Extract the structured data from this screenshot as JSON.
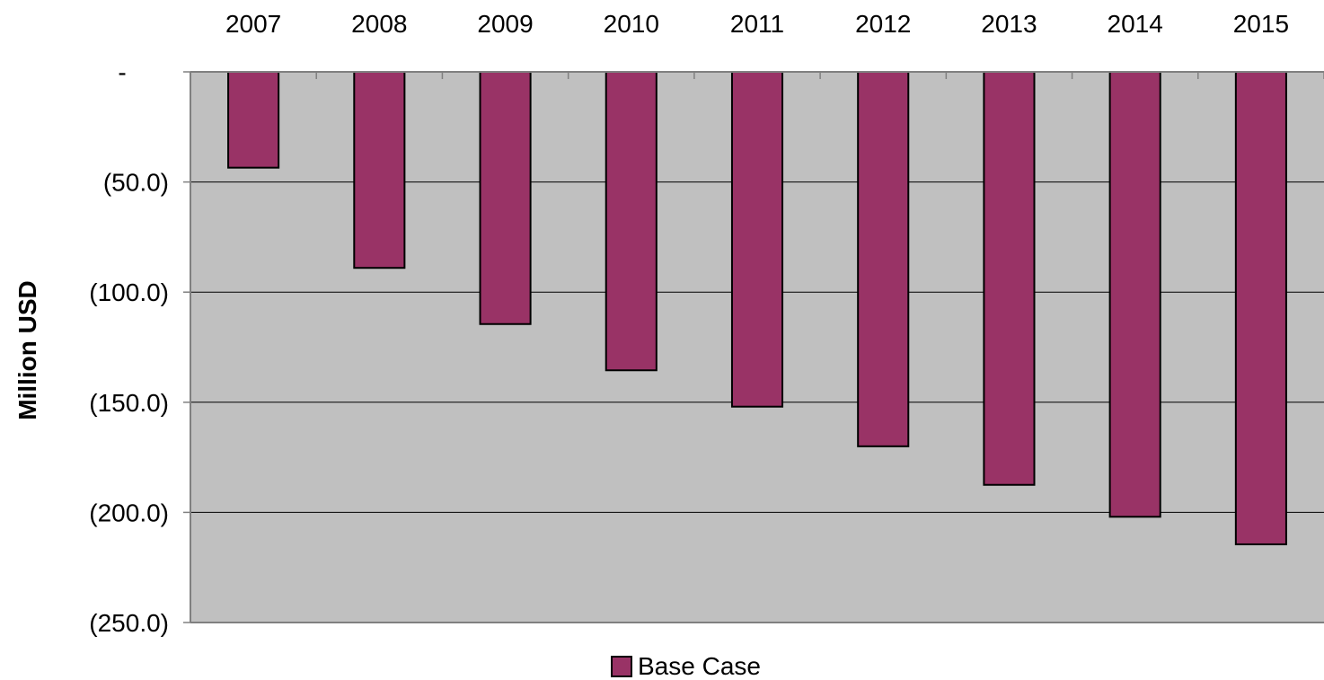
{
  "chart_data": {
    "type": "bar",
    "categories": [
      "2007",
      "2008",
      "2009",
      "2010",
      "2011",
      "2012",
      "2013",
      "2014",
      "2015"
    ],
    "series": [
      {
        "name": "Base Case",
        "values": [
          -43.5,
          -89,
          -114.5,
          -135.5,
          -152,
          -170,
          -187.5,
          -202,
          -214.5
        ]
      }
    ],
    "xlabel": "",
    "ylabel": "Million USD",
    "ylim": [
      -250,
      0
    ],
    "y_ticks": [
      0,
      -50,
      -100,
      -150,
      -200,
      -250
    ],
    "y_tick_labels": [
      "-",
      "(50.0)",
      "(100.0)",
      "(150.0)",
      "(200.0)",
      "(250.0)"
    ],
    "x_axis_position": "top",
    "grid": true,
    "legend_position": "bottom-center",
    "colors": {
      "plot_background": "#c0c0c0",
      "bar_fill": "#993366",
      "bar_stroke": "#000000",
      "gridline": "#000000",
      "axis": "#808080"
    }
  }
}
